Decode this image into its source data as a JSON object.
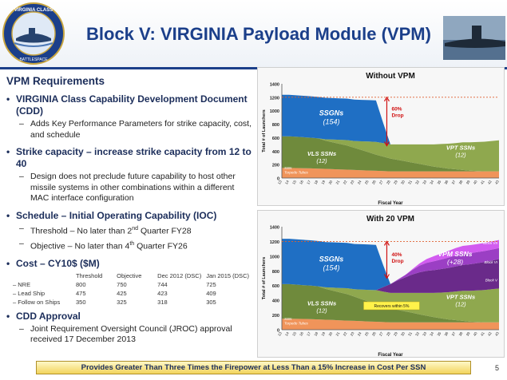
{
  "header": {
    "title": "Block V: VIRGINIA Payload Module (VPM)",
    "seal_text": "VIRGINIA CLASS SUBMARINE",
    "seal_motto": "BATTLESPACE DOMINANCE"
  },
  "left": {
    "section_title": "VPM Requirements",
    "items": [
      {
        "bullet": "VIRGINIA Class Capability Development Document (CDD)",
        "subs": [
          "Adds Key Performance Parameters for strike capacity, cost, and schedule"
        ]
      },
      {
        "bullet": "Strike capacity – increase strike capacity from 12 to 40",
        "subs": [
          "Design does not preclude future capability to host other missile systems in other combinations within a different MAC interface configuration"
        ]
      }
    ],
    "schedule": {
      "bullet": "Schedule – Initial Operating Capability (IOC)",
      "threshold_pre": "Threshold – No later than 2",
      "threshold_sup": "nd",
      "threshold_post": " Quarter FY28",
      "objective_pre": "Objective – No later than 4",
      "objective_sup": "th",
      "objective_post": " Quarter FY26"
    },
    "cost": {
      "bullet": "Cost – CY10$ ($M)",
      "headers": [
        "Threshold",
        "Objective",
        "Dec 2012 (DSC)",
        "Jan 2015 (DSC)"
      ],
      "rows": [
        {
          "label": "– NRE",
          "values": [
            "800",
            "750",
            "744",
            "725"
          ]
        },
        {
          "label": "– Lead Ship",
          "values": [
            "475",
            "425",
            "423",
            "409"
          ]
        },
        {
          "label": "– Follow on Ships",
          "values": [
            "350",
            "325",
            "318",
            "305"
          ]
        }
      ]
    },
    "cdd": {
      "bullet": "CDD Approval",
      "sub": "Joint Requirement Oversight Council (JROC) approval received 17 December 2013"
    }
  },
  "footer": {
    "banner": "Provides Greater Than Three Times the Firepower at Less Than a 15% Increase in Cost Per SSN",
    "page_number": "5"
  },
  "colors": {
    "ssgn": "#1f6fc4",
    "vls": "#6f8a3c",
    "vpt": "#8fa84e",
    "torpedo": "#f0945a",
    "vpm_dark": "#6a2a8a",
    "vpm_mid": "#9b3fc4",
    "vpm_light": "#d25cf0",
    "requirement_line": "#e06030",
    "drop_arrow": "#d01010"
  },
  "chart_data": [
    {
      "type": "area",
      "title": "Without VPM",
      "xlabel": "Fiscal Year",
      "ylabel": "Total # of Launchers",
      "ylim": [
        0,
        1400
      ],
      "yticks": [
        0,
        200,
        400,
        600,
        800,
        1000,
        1200,
        1400
      ],
      "x": [
        13,
        14,
        15,
        16,
        17,
        18,
        19,
        20,
        21,
        22,
        23,
        24,
        25,
        26,
        27,
        28,
        29,
        30,
        31,
        32,
        33,
        34,
        35,
        36,
        37,
        38,
        39,
        40,
        41,
        42,
        43
      ],
      "series": [
        {
          "name": "SSN Torpedo Tubes",
          "values": [
            150,
            150,
            148,
            146,
            144,
            140,
            136,
            132,
            128,
            124,
            120,
            116,
            112,
            108,
            104,
            100,
            100,
            100,
            100,
            100,
            100,
            100,
            100,
            100,
            100,
            100,
            100,
            100,
            100,
            100,
            100
          ]
        },
        {
          "name": "VLS SSNs",
          "values": [
            470,
            470,
            465,
            460,
            455,
            450,
            420,
            400,
            380,
            360,
            330,
            300,
            270,
            240,
            215,
            190,
            170,
            150,
            130,
            110,
            90,
            70,
            55,
            40,
            30,
            20,
            10,
            5,
            0,
            0,
            0
          ]
        },
        {
          "name": "VPT SSNs",
          "values": [
            0,
            0,
            0,
            0,
            0,
            0,
            20,
            40,
            60,
            80,
            100,
            130,
            160,
            190,
            200,
            210,
            230,
            250,
            270,
            290,
            310,
            330,
            350,
            370,
            390,
            410,
            420,
            430,
            440,
            450,
            460
          ]
        },
        {
          "name": "SSGNs",
          "values": [
            616,
            616,
            616,
            616,
            616,
            616,
            616,
            616,
            616,
            616,
            616,
            616,
            616,
            616,
            300,
            0,
            0,
            0,
            0,
            0,
            0,
            0,
            0,
            0,
            0,
            0,
            0,
            0,
            0,
            0,
            0
          ]
        }
      ],
      "annotations": [
        {
          "text": "SSGNs",
          "sub": "(154)"
        },
        {
          "text": "VLS SSNs",
          "sub": "(12)"
        },
        {
          "text": "VPT SSNs",
          "sub": "(12)"
        },
        {
          "text": "60%",
          "sub": "Drop"
        },
        {
          "text": "SSN",
          "sub": "Torpedo Tubes"
        }
      ],
      "requirement_line": 1200
    },
    {
      "type": "area",
      "title": "With 20 VPM",
      "xlabel": "Fiscal Year",
      "ylabel": "Total # of Launchers",
      "ylim": [
        0,
        1400
      ],
      "yticks": [
        0,
        200,
        400,
        600,
        800,
        1000,
        1200,
        1400
      ],
      "x": [
        13,
        14,
        15,
        16,
        17,
        18,
        19,
        20,
        21,
        22,
        23,
        24,
        25,
        26,
        27,
        28,
        29,
        30,
        31,
        32,
        33,
        34,
        35,
        36,
        37,
        38,
        39,
        40,
        41,
        42,
        43
      ],
      "series": [
        {
          "name": "SSN Torpedo Tubes",
          "values": [
            150,
            150,
            148,
            146,
            144,
            140,
            136,
            132,
            128,
            124,
            120,
            116,
            112,
            108,
            104,
            100,
            100,
            100,
            100,
            100,
            100,
            100,
            100,
            100,
            100,
            100,
            100,
            100,
            100,
            100,
            100
          ]
        },
        {
          "name": "VLS SSNs",
          "values": [
            470,
            470,
            465,
            460,
            455,
            450,
            420,
            400,
            380,
            360,
            330,
            300,
            270,
            240,
            215,
            190,
            170,
            150,
            130,
            110,
            90,
            70,
            55,
            40,
            30,
            20,
            10,
            5,
            0,
            0,
            0
          ]
        },
        {
          "name": "VPT SSNs",
          "values": [
            0,
            0,
            0,
            0,
            0,
            0,
            20,
            40,
            60,
            80,
            100,
            130,
            160,
            190,
            200,
            210,
            230,
            250,
            270,
            290,
            310,
            330,
            350,
            370,
            390,
            410,
            420,
            430,
            440,
            450,
            460
          ]
        },
        {
          "name": "Block V",
          "values": [
            0,
            0,
            0,
            0,
            0,
            0,
            0,
            0,
            0,
            0,
            0,
            0,
            0,
            0,
            60,
            120,
            170,
            210,
            250,
            280,
            300,
            310,
            320,
            330,
            340,
            350,
            360,
            370,
            380,
            390,
            400
          ]
        },
        {
          "name": "Block VI",
          "values": [
            0,
            0,
            0,
            0,
            0,
            0,
            0,
            0,
            0,
            0,
            0,
            0,
            0,
            0,
            0,
            0,
            10,
            30,
            60,
            90,
            110,
            120,
            130,
            140,
            150,
            150,
            150,
            150,
            150,
            150,
            150
          ]
        },
        {
          "name": "Block VII",
          "values": [
            0,
            0,
            0,
            0,
            0,
            0,
            0,
            0,
            0,
            0,
            0,
            0,
            0,
            0,
            0,
            0,
            0,
            0,
            10,
            30,
            50,
            70,
            80,
            90,
            100,
            110,
            110,
            110,
            110,
            110,
            110
          ]
        },
        {
          "name": "SSGNs",
          "values": [
            616,
            616,
            616,
            616,
            616,
            616,
            616,
            616,
            616,
            616,
            616,
            616,
            616,
            616,
            300,
            0,
            0,
            0,
            0,
            0,
            0,
            0,
            0,
            0,
            0,
            0,
            0,
            0,
            0,
            0,
            0
          ]
        }
      ],
      "annotations": [
        {
          "text": "SSGNs",
          "sub": "(154)"
        },
        {
          "text": "VLS SSNs",
          "sub": "(12)"
        },
        {
          "text": "VPT SSNs",
          "sub": "(12)"
        },
        {
          "text": "VPM SSNs",
          "sub": "(+28)"
        },
        {
          "text": "40%",
          "sub": "Drop"
        },
        {
          "text": "Recovers within 5%",
          "sub": ""
        },
        {
          "text": "SSN",
          "sub": "Torpedo Tubes"
        },
        {
          "text": "Block V",
          "sub": ""
        },
        {
          "text": "Block VI",
          "sub": ""
        },
        {
          "text": "Block VII",
          "sub": ""
        }
      ],
      "requirement_line": 1200
    }
  ]
}
